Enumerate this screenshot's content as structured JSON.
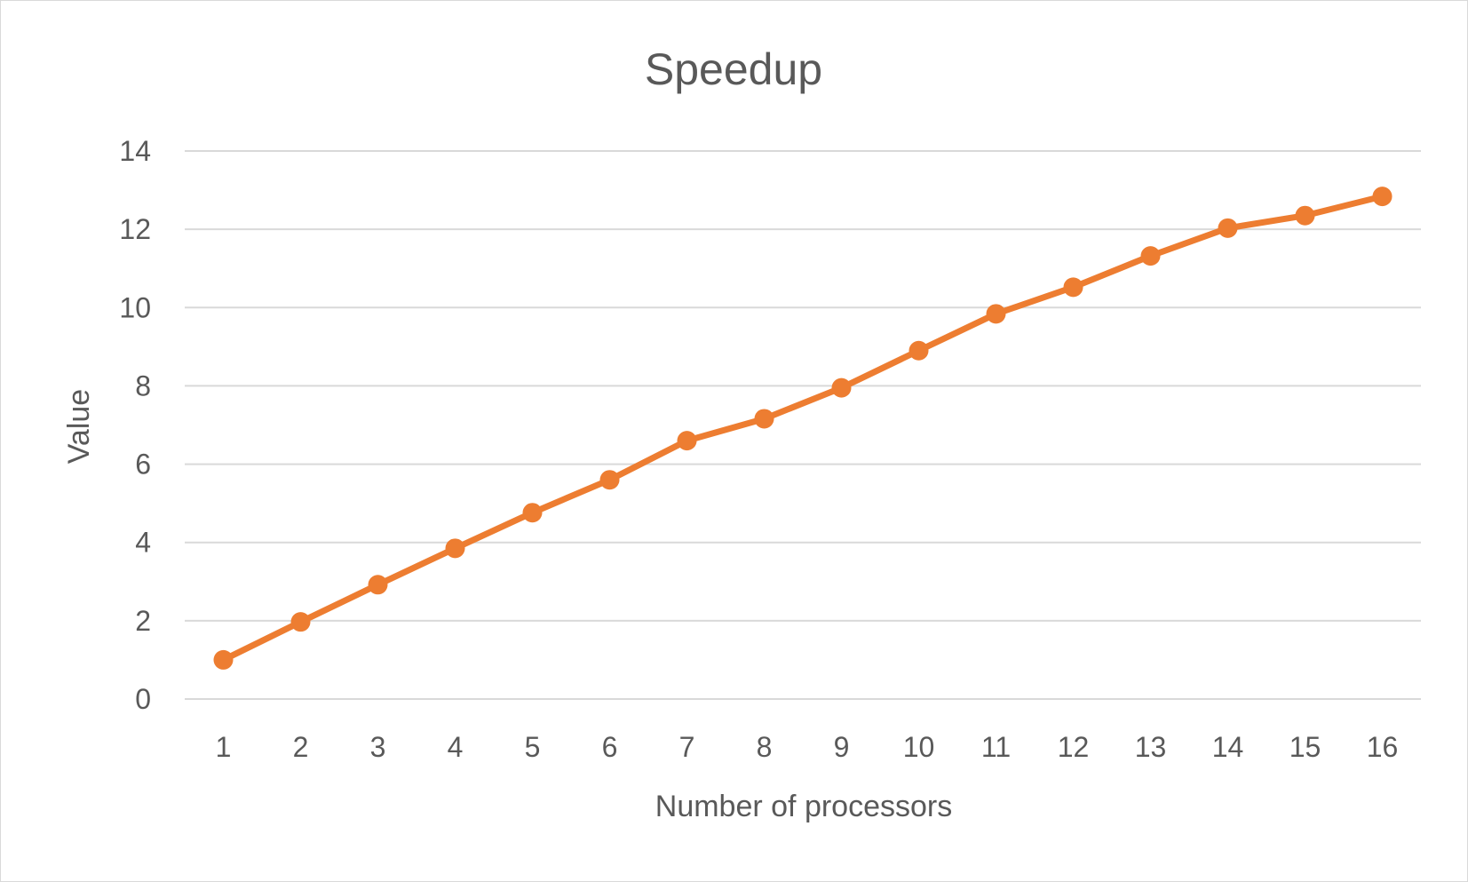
{
  "chart_data": {
    "type": "line",
    "title": "Speedup",
    "xlabel": "Number of processors",
    "ylabel": "Value",
    "categories": [
      "1",
      "2",
      "3",
      "4",
      "5",
      "6",
      "7",
      "8",
      "9",
      "10",
      "11",
      "12",
      "13",
      "14",
      "15",
      "16"
    ],
    "series": [
      {
        "values": [
          1.0,
          1.97,
          2.92,
          3.85,
          4.76,
          5.6,
          6.6,
          7.16,
          7.95,
          8.9,
          9.84,
          10.52,
          11.32,
          12.03,
          12.35,
          12.84
        ],
        "color": "#ed7d31",
        "marker": "circle"
      }
    ],
    "ylim": [
      0,
      14
    ],
    "yticks": [
      0,
      2,
      4,
      6,
      8,
      10,
      12,
      14
    ],
    "grid": "horizontal",
    "legend": "none"
  }
}
